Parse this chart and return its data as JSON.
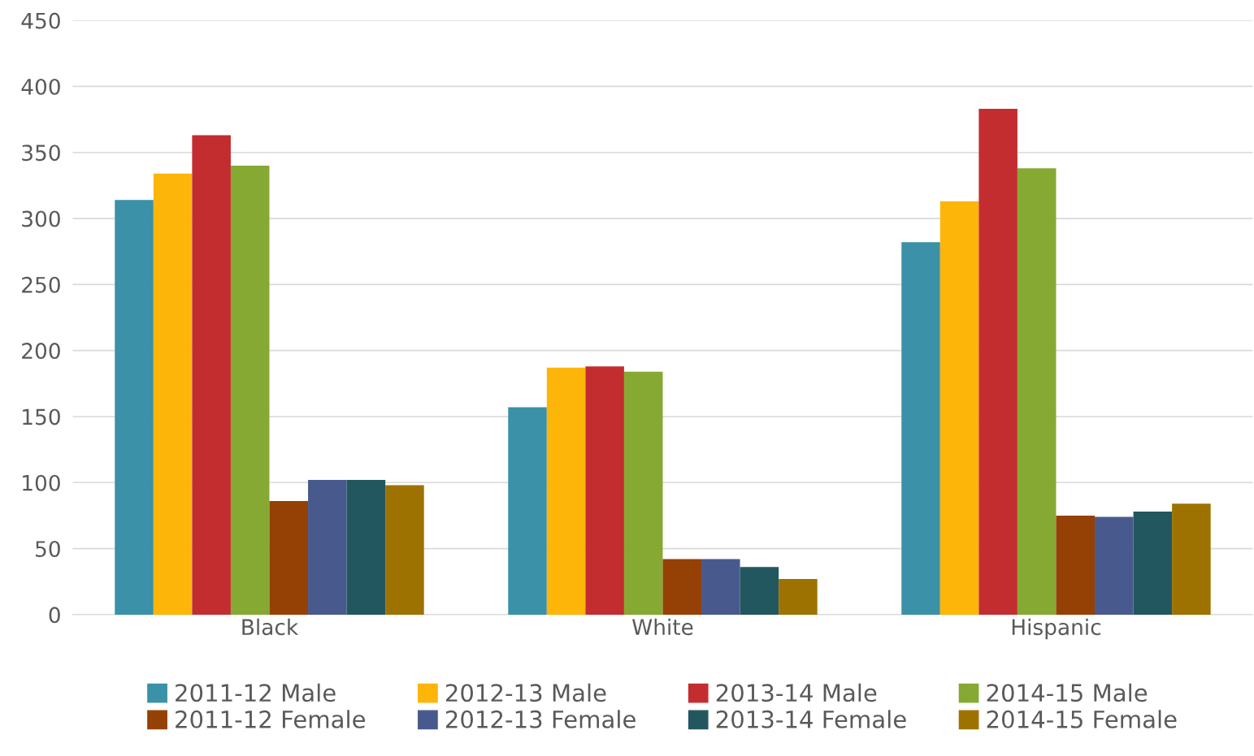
{
  "chart_data": {
    "type": "bar",
    "categories": [
      "Black",
      "White",
      "Hispanic"
    ],
    "series": [
      {
        "name": "2011-12 Male",
        "color": "#3a91a8",
        "values": [
          314,
          157,
          282
        ]
      },
      {
        "name": "2012-13 Male",
        "color": "#fdb50a",
        "values": [
          334,
          187,
          313
        ]
      },
      {
        "name": "2013-14 Male",
        "color": "#c32d2f",
        "values": [
          363,
          188,
          383
        ]
      },
      {
        "name": "2014-15 Male",
        "color": "#86a933",
        "values": [
          340,
          184,
          338
        ]
      },
      {
        "name": "2011-12 Female",
        "color": "#954004",
        "values": [
          86,
          42,
          75
        ]
      },
      {
        "name": "2012-13 Female",
        "color": "#485a8d",
        "values": [
          102,
          42,
          74
        ]
      },
      {
        "name": "2013-14 Female",
        "color": "#22575f",
        "values": [
          102,
          36,
          78
        ]
      },
      {
        "name": "2014-15 Female",
        "color": "#9e7200",
        "values": [
          98,
          27,
          84
        ]
      }
    ],
    "ylim": [
      0,
      450
    ],
    "yticks": [
      0,
      50,
      100,
      150,
      200,
      250,
      300,
      350,
      400,
      450
    ],
    "grid": "y",
    "legend": "bottom"
  }
}
